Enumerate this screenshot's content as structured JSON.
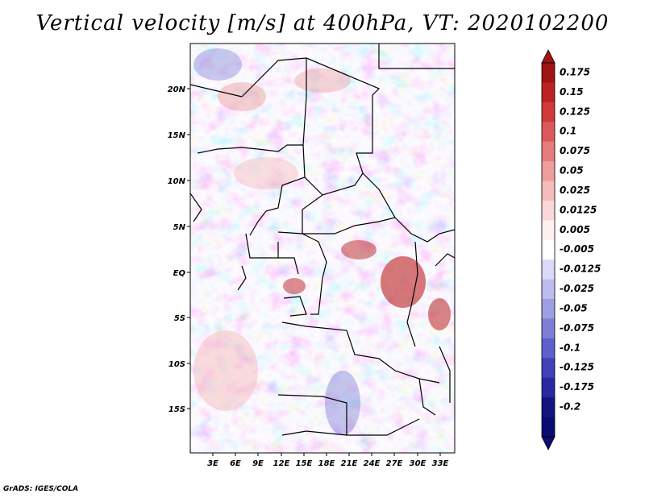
{
  "title": "Vertical velocity [m/s] at 400hPa, VT: 2020102200",
  "footer": "GrADS: IGES/COLA",
  "map": {
    "lat_labels": [
      "20N",
      "15N",
      "10N",
      "5N",
      "EQ",
      "5S",
      "10S",
      "15S"
    ],
    "lon_labels": [
      "3E",
      "6E",
      "9E",
      "12E",
      "15E",
      "18E",
      "21E",
      "24E",
      "27E",
      "30E",
      "33E"
    ]
  },
  "colorbar": {
    "levels": [
      "0.175",
      "0.15",
      "0.125",
      "0.1",
      "0.075",
      "0.05",
      "0.025",
      "0.0125",
      "0.005",
      "-0.005",
      "-0.0125",
      "-0.025",
      "-0.05",
      "-0.075",
      "-0.1",
      "-0.125",
      "-0.175",
      "-0.2"
    ],
    "colors": [
      "#a01414",
      "#bc2222",
      "#d03a3a",
      "#dc5a5a",
      "#e67c7c",
      "#ee9c9c",
      "#f5bcbc",
      "#fad8d8",
      "#fdf0f0",
      "#ffffff",
      "#dadaf6",
      "#bcbcee",
      "#9e9ee4",
      "#7e7ed8",
      "#5e5ecc",
      "#4040b8",
      "#2828a0",
      "#141480",
      "#0a0a70"
    ]
  }
}
